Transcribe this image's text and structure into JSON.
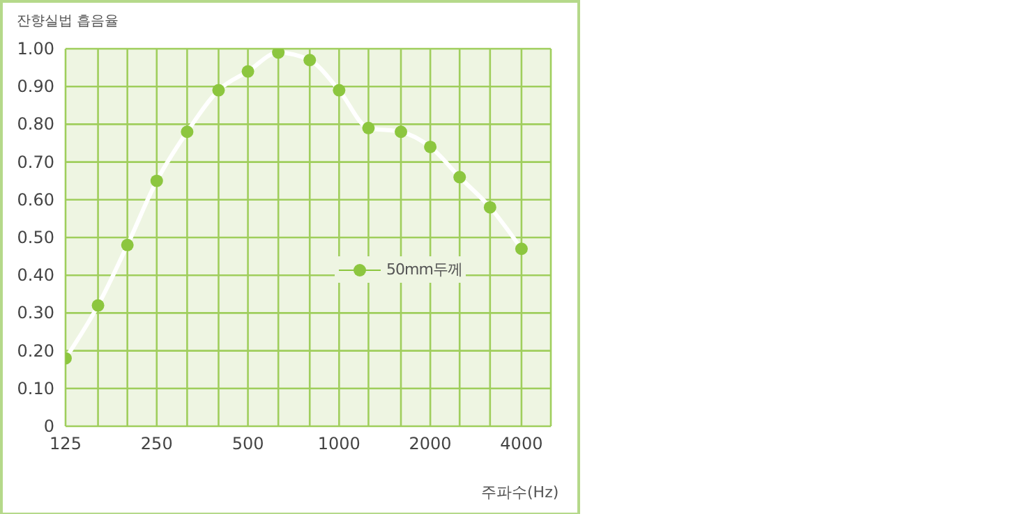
{
  "chart_data": {
    "type": "line",
    "xlabel": "주파수(Hz)",
    "ylabel": "잔향실법 흡음율",
    "x": [
      125,
      160,
      200,
      250,
      315,
      400,
      500,
      630,
      800,
      1000,
      1250,
      1600,
      2000,
      2500,
      3150,
      4000
    ],
    "series": [
      {
        "name": "50mm두께",
        "color": "#8cc63f",
        "values": [
          0.18,
          0.32,
          0.48,
          0.65,
          0.78,
          0.89,
          0.94,
          0.99,
          0.97,
          0.89,
          0.79,
          0.78,
          0.74,
          0.66,
          0.58,
          0.47
        ]
      }
    ],
    "log": "x",
    "xlim": [
      125,
      5000
    ],
    "xticks": [
      125,
      {
        "value": 160,
        "label": null
      },
      {
        "value": 200,
        "label": null
      },
      250,
      {
        "value": 315,
        "label": null
      },
      {
        "value": 400,
        "label": null
      },
      500,
      {
        "value": 630,
        "label": null
      },
      {
        "value": 800,
        "label": null
      },
      1000,
      {
        "value": 1250,
        "label": null
      },
      {
        "value": 1600,
        "label": null
      },
      2000,
      {
        "value": 2500,
        "label": null
      },
      {
        "value": 3150,
        "label": null
      },
      4000,
      {
        "value": 5000,
        "label": null
      }
    ],
    "ylim": [
      0,
      1
    ],
    "yticks": [
      0,
      {
        "value": 0.1,
        "label": "0.10"
      },
      {
        "value": 0.2,
        "label": "0.20"
      },
      {
        "value": 0.3,
        "label": "0.30"
      },
      {
        "value": 0.4,
        "label": "0.40"
      },
      {
        "value": 0.5,
        "label": "0.50"
      },
      {
        "value": 0.6,
        "label": "0.60"
      },
      {
        "value": 0.7,
        "label": "0.70"
      },
      {
        "value": 0.8,
        "label": "0.80"
      },
      {
        "value": 0.9,
        "label": "0.90"
      },
      {
        "value": 1,
        "label": "1.00"
      }
    ],
    "grid": true,
    "legend": "right",
    "marker": "circle",
    "line_style": "solid"
  }
}
